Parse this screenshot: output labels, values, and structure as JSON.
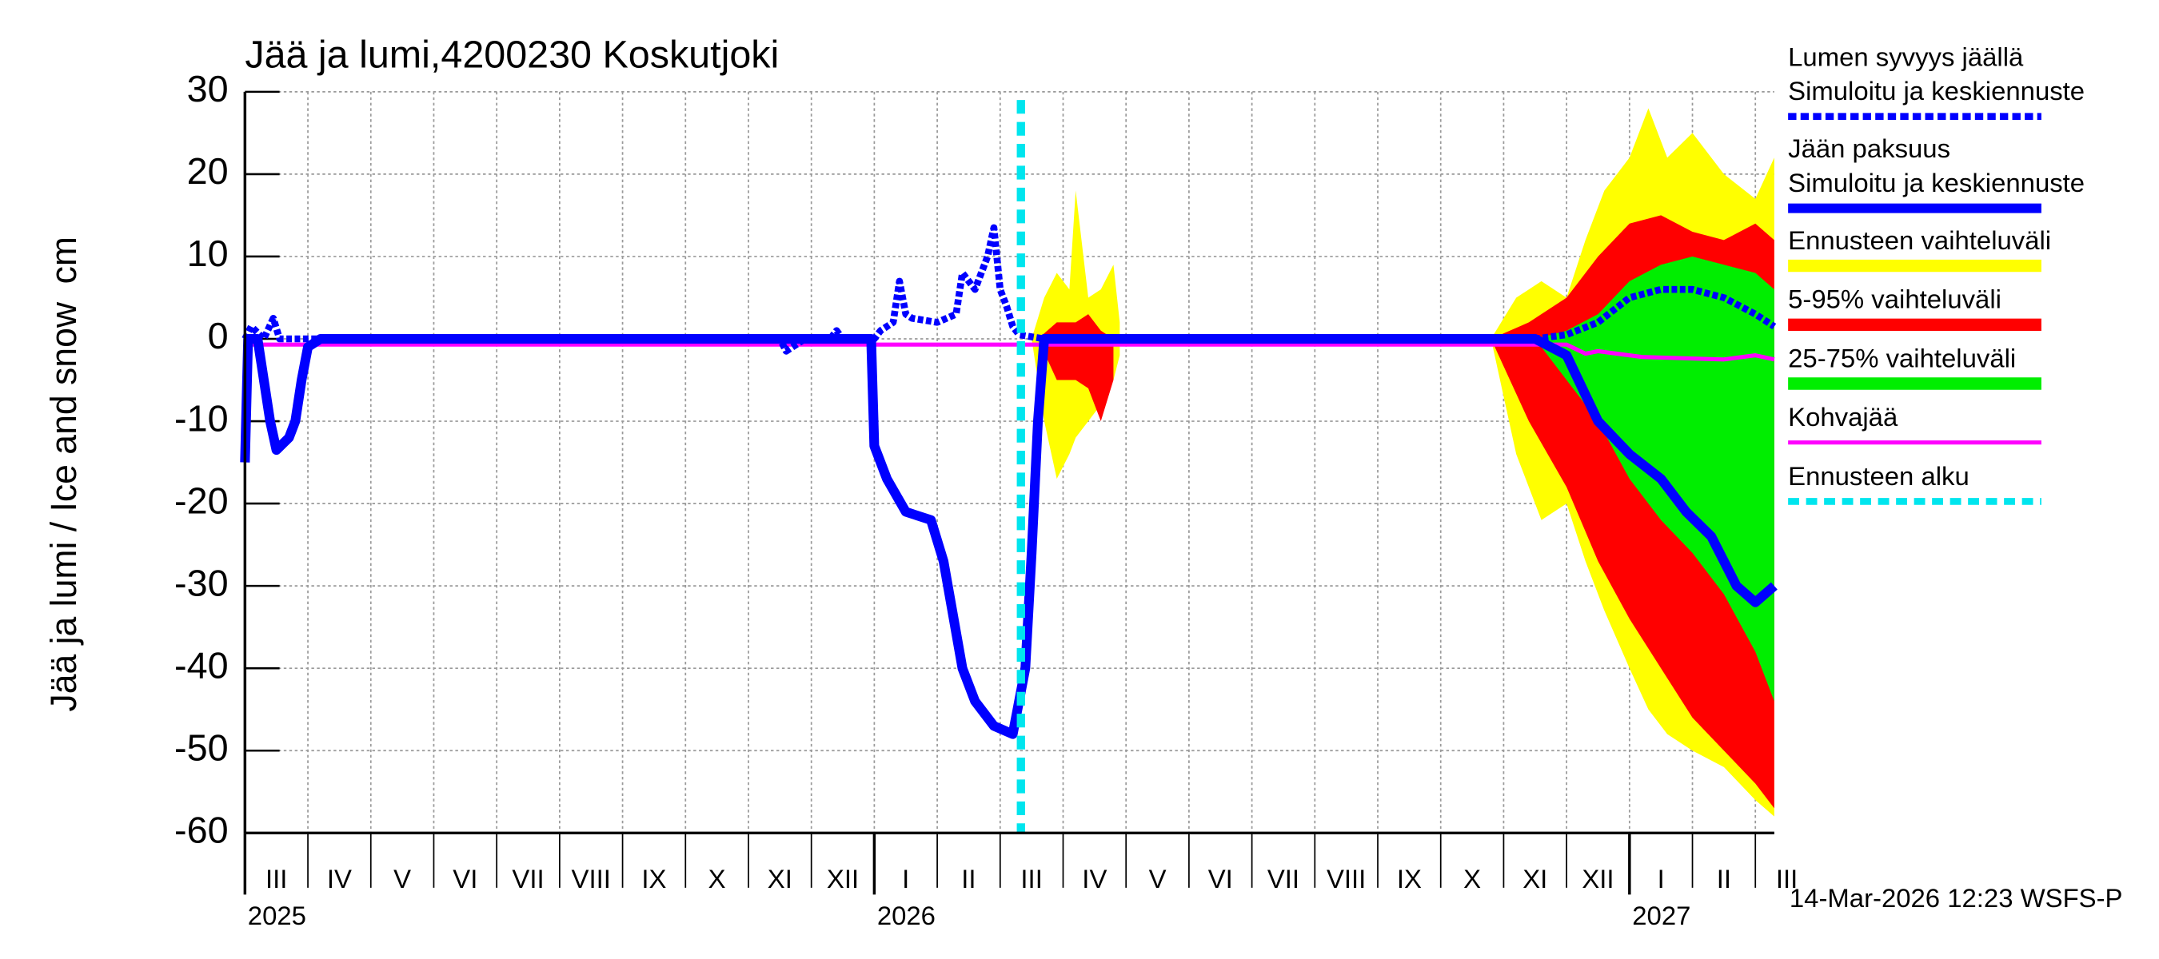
{
  "chart_data": {
    "type": "line",
    "title": "Jää ja lumi,4200230 Koskutjoki",
    "ylabel": "Jää ja lumi / Ice and snow",
    "yunit": "cm",
    "footer": "14-Mar-2026 12:23 WSFS-P",
    "xlim": [
      0,
      24.3
    ],
    "xticks": [
      0,
      1,
      2,
      3,
      4,
      5,
      6,
      7,
      8,
      9,
      10,
      11,
      12,
      13,
      14,
      15,
      16,
      17,
      18,
      19,
      20,
      21,
      22,
      23,
      24
    ],
    "month_labels": [
      "III",
      "IV",
      "V",
      "VI",
      "VII",
      "VIII",
      "IX",
      "X",
      "XI",
      "XII",
      "I",
      "II",
      "III",
      "IV",
      "V",
      "VI",
      "VII",
      "VIII",
      "IX",
      "X",
      "XI",
      "XII",
      "I",
      "II",
      "III"
    ],
    "year_labels": [
      {
        "value": 0,
        "label": "2025"
      },
      {
        "value": 10,
        "label": "2026"
      },
      {
        "value": 22,
        "label": "2027"
      }
    ],
    "ylim": [
      -60,
      30
    ],
    "yticks": [
      -60,
      -50,
      -40,
      -30,
      -20,
      -10,
      0,
      10,
      20,
      30
    ],
    "grid": true,
    "bands": [
      {
        "name": "Ennusteen vaihteluväli",
        "color": "#ffff00",
        "x": [
          12.5,
          12.7,
          12.9,
          13.1,
          13.2,
          13.4,
          13.6,
          13.8,
          13.9,
          null,
          19.8,
          20.2,
          20.6,
          21.0,
          21.3,
          21.6,
          22.0,
          22.3,
          22.6,
          23.0,
          23.5,
          24.0,
          24.3
        ],
        "upper": [
          0,
          5,
          8,
          6,
          18,
          5,
          6,
          9,
          2,
          null,
          0,
          5,
          7,
          5,
          12,
          18,
          22,
          28,
          22,
          25,
          20,
          17,
          22
        ],
        "lower": [
          0,
          -10,
          -17,
          -14,
          -12,
          -10,
          -8,
          -5,
          -2,
          null,
          0,
          -14,
          -22,
          -20,
          -27,
          -33,
          -40,
          -45,
          -48,
          -50,
          -52,
          -56,
          -58
        ]
      },
      {
        "name": "5-95% vaihteluväli",
        "color": "#ff0000",
        "x": [
          12.6,
          12.9,
          13.2,
          13.4,
          13.6,
          13.8,
          null,
          19.8,
          20.4,
          21.0,
          21.5,
          22.0,
          22.5,
          23.0,
          23.5,
          24.0,
          24.3
        ],
        "upper": [
          0,
          2,
          2,
          3,
          1,
          0,
          null,
          0,
          2,
          5,
          10,
          14,
          15,
          13,
          12,
          14,
          12
        ],
        "lower": [
          0,
          -5,
          -5,
          -6,
          -10,
          -5,
          null,
          0,
          -10,
          -18,
          -27,
          -34,
          -40,
          -46,
          -50,
          -54,
          -57
        ]
      },
      {
        "name": "25-75% vaihteluväli",
        "color": "#00ee00",
        "x": [
          20.5,
          21.0,
          21.5,
          22.0,
          22.5,
          23.0,
          23.5,
          24.0,
          24.3
        ],
        "upper": [
          0,
          1,
          3,
          7,
          9,
          10,
          9,
          8,
          6
        ],
        "lower": [
          0,
          -5,
          -10,
          -17,
          -22,
          -26,
          -31,
          -38,
          -44
        ]
      }
    ],
    "series": [
      {
        "name": "Kohvajää",
        "color": "#ff00ff",
        "style": "solid",
        "width": 3,
        "x": [
          0,
          21.0,
          21.3,
          21.5,
          22.2,
          23.5,
          24.0,
          24.3
        ],
        "values": [
          -0.7,
          -0.7,
          -1.8,
          -1.5,
          -2.2,
          -2.5,
          -2.0,
          -2.5
        ]
      },
      {
        "legend_title": "Lumen syvyys jäällä",
        "name": "Simuloitu ja keskiennuste",
        "color": "#0000ff",
        "style": "dashed",
        "width": 5,
        "x": [
          0,
          0.1,
          0.3,
          0.45,
          0.55,
          1,
          8.5,
          8.6,
          8.9,
          9.3,
          9.4,
          9.5,
          10,
          10.1,
          10.3,
          10.4,
          10.5,
          10.6,
          11.0,
          11.3,
          11.4,
          11.6,
          11.8,
          11.9,
          12.0,
          12.1,
          12.2,
          12.3,
          12.7,
          20.5,
          21.0,
          21.5,
          22.0,
          22.5,
          23.0,
          23.5,
          24.0,
          24.3
        ],
        "values": [
          0,
          1.5,
          0,
          2.5,
          0,
          0,
          0,
          -1.5,
          0,
          0,
          1,
          0,
          0,
          1,
          2,
          7,
          3,
          2.5,
          2,
          3,
          8,
          6,
          10,
          13.5,
          6,
          4,
          1.5,
          0.5,
          0,
          0,
          0.5,
          2,
          5,
          6,
          6,
          5,
          3,
          1.5
        ]
      },
      {
        "legend_title": "Jään paksuus",
        "name": "Simuloitu ja keskiennuste",
        "color": "#0000ff",
        "style": "solid",
        "width": 7,
        "x": [
          0,
          0.05,
          0.2,
          0.4,
          0.5,
          0.7,
          0.8,
          0.9,
          1.0,
          1.2,
          9.95,
          10.0,
          10.2,
          10.5,
          10.9,
          11.1,
          11.4,
          11.6,
          11.9,
          12.2,
          12.4,
          12.5,
          12.6,
          12.7,
          20.5,
          21.0,
          21.5,
          22.0,
          22.5,
          22.9,
          23.3,
          23.7,
          24.0,
          24.3
        ],
        "values": [
          -15,
          0,
          0,
          -10,
          -13.5,
          -12,
          -10,
          -5,
          -1,
          0,
          0,
          -13,
          -17,
          -21,
          -22,
          -27,
          -40,
          -44,
          -47,
          -48,
          -40,
          -26,
          -10,
          0,
          0,
          -2,
          -10,
          -14,
          -17,
          -21,
          -24,
          -30,
          -32,
          -30
        ]
      }
    ],
    "forecast_start": {
      "x": 12.33,
      "label": "Ennusteen alku",
      "color": "#00e5ee"
    }
  }
}
